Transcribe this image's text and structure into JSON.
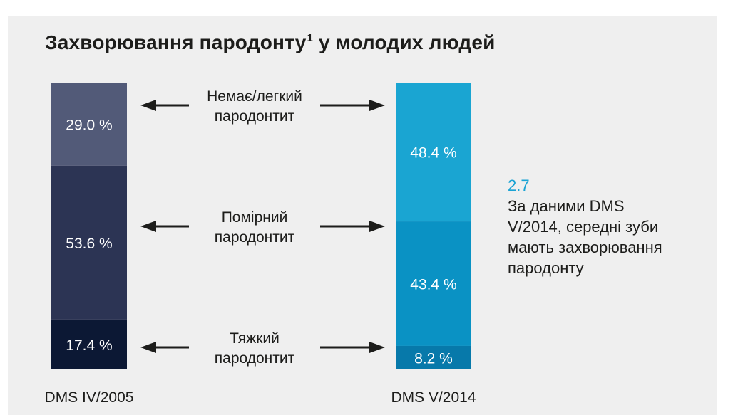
{
  "chart_data": {
    "type": "bar",
    "stacked": true,
    "orientation": "vertical",
    "title": "Захворювання пародонту",
    "title_footnote": "1",
    "categories": [
      "DMS IV/2005",
      "DMS V/2014"
    ],
    "series": [
      {
        "name": "Немає/легкий пародонтит",
        "name_lines": [
          "Немає/легкий",
          "пародонтит"
        ],
        "values": [
          29.0,
          48.4
        ],
        "labels": [
          "29.0 %",
          "48.4 %"
        ],
        "colors": [
          "#525a78",
          "#1aa5d2"
        ]
      },
      {
        "name": "Помірний пародонтит",
        "name_lines": [
          "Помірний",
          "пародонтит"
        ],
        "values": [
          53.6,
          43.4
        ],
        "labels": [
          "53.6 %",
          "43.4 %"
        ],
        "colors": [
          "#2c3454",
          "#0a92c4"
        ]
      },
      {
        "name": "Тяжкий пародонтит",
        "name_lines": [
          "Тяжкий",
          "пародонтит"
        ],
        "values": [
          17.4,
          8.2
        ],
        "labels": [
          "17.4 %",
          "8.2 %"
        ],
        "colors": [
          "#0c1834",
          "#0779aa"
        ]
      }
    ],
    "ylim": [
      0,
      100
    ],
    "legend_placement": "between bars, with double-headed arrows"
  },
  "side_note": {
    "value": "2.7",
    "lines": [
      "За даними DMS",
      "V/2014, середні зуби",
      "мають захворювання",
      "пародонту"
    ]
  },
  "colors": {
    "background_panel": "#efefef",
    "highlight_text": "#1aa3d4",
    "arrow": "#1d1d1b"
  }
}
